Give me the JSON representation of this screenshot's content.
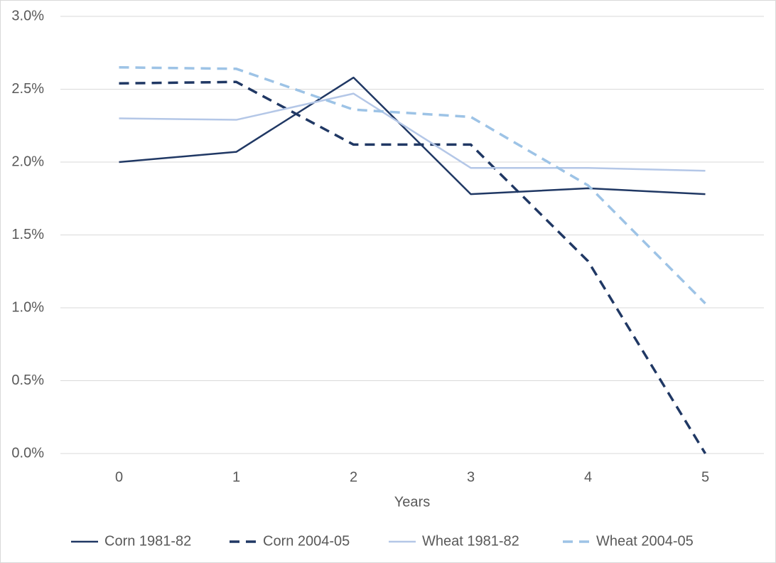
{
  "chart_data": {
    "type": "line",
    "x_label": "Years",
    "categories": [
      "0",
      "1",
      "2",
      "3",
      "4",
      "5"
    ],
    "series": [
      {
        "name": "Corn 1981-82",
        "color": "#203864",
        "dash": false,
        "values": [
          2.0,
          2.07,
          2.58,
          1.78,
          1.82,
          1.78
        ]
      },
      {
        "name": "Corn 2004-05",
        "color": "#203864",
        "dash": true,
        "values": [
          2.54,
          2.55,
          2.12,
          2.12,
          1.32,
          0.0
        ]
      },
      {
        "name": "Wheat 1981-82",
        "color": "#b4c7e7",
        "dash": false,
        "values": [
          2.3,
          2.29,
          2.47,
          1.96,
          1.96,
          1.94
        ]
      },
      {
        "name": "Wheat 2004-05",
        "color": "#9dc3e6",
        "dash": true,
        "values": [
          2.65,
          2.64,
          2.36,
          2.31,
          1.84,
          1.03
        ]
      }
    ],
    "ylim": [
      0,
      3
    ],
    "yticks": [
      {
        "value": 0,
        "label": "0.0%"
      },
      {
        "value": 0.5,
        "label": "0.5%"
      },
      {
        "value": 1,
        "label": "1.0%"
      },
      {
        "value": 1.5,
        "label": "1.5%"
      },
      {
        "value": 2,
        "label": "2.0%"
      },
      {
        "value": 2.5,
        "label": "2.5%"
      },
      {
        "value": 3,
        "label": "3.0%"
      }
    ],
    "grid": true,
    "legend": "bottom"
  }
}
